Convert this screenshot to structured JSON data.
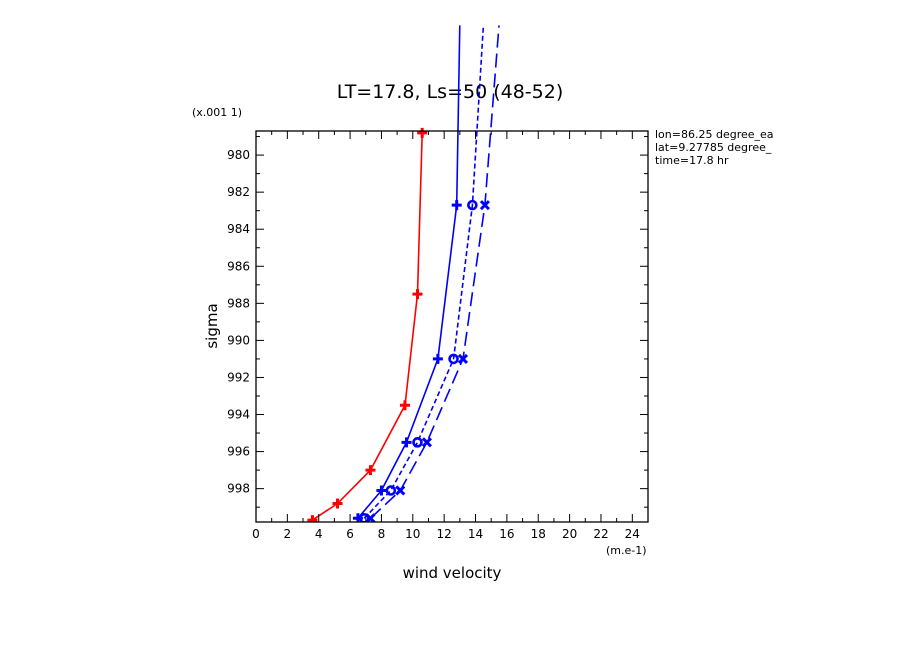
{
  "chart_data": {
    "type": "line",
    "title": "LT=17.8, Ls=50 (48-52)",
    "xlabel": "wind velocity",
    "ylabel": "sigma",
    "x_unit_label": "(m.e-1)",
    "y_unit_label": "(x.001 1)",
    "xlim": [
      0,
      25
    ],
    "ylim": [
      999.8,
      978.7
    ],
    "x_ticks": [
      0,
      2,
      4,
      6,
      8,
      10,
      12,
      14,
      16,
      18,
      20,
      22,
      24
    ],
    "y_ticks": [
      980,
      982,
      984,
      986,
      988,
      990,
      992,
      994,
      996,
      998
    ],
    "info": [
      "lon=86.25 degree_ea",
      "lat=9.27785 degree_",
      "time=17.8 hr"
    ],
    "series": [
      {
        "color": "#ff0000",
        "dash": "solid",
        "marker": "plus",
        "points": [
          [
            3.6,
            999.7
          ],
          [
            5.2,
            998.8
          ],
          [
            7.3,
            997.0
          ],
          [
            9.5,
            993.5
          ],
          [
            10.3,
            987.5
          ],
          [
            10.6,
            978.8
          ]
        ]
      },
      {
        "color": "#0000ff",
        "dash": "solid",
        "marker": "plus",
        "points": [
          [
            6.5,
            999.6
          ],
          [
            8.0,
            998.1
          ],
          [
            9.6,
            995.5
          ],
          [
            11.6,
            991.0
          ],
          [
            12.8,
            982.7
          ],
          [
            13.0,
            973.0
          ]
        ]
      },
      {
        "color": "#0000ff",
        "dash": "short",
        "marker": "circle",
        "points": [
          [
            6.9,
            999.6
          ],
          [
            8.6,
            998.1
          ],
          [
            10.3,
            995.5
          ],
          [
            12.6,
            991.0
          ],
          [
            13.8,
            982.7
          ],
          [
            14.5,
            973.0
          ]
        ]
      },
      {
        "color": "#0000ff",
        "dash": "long",
        "marker": "cross",
        "points": [
          [
            7.3,
            999.6
          ],
          [
            9.2,
            998.1
          ],
          [
            10.9,
            995.5
          ],
          [
            13.2,
            991.0
          ],
          [
            14.6,
            982.7
          ],
          [
            15.5,
            973.0
          ]
        ]
      }
    ]
  }
}
